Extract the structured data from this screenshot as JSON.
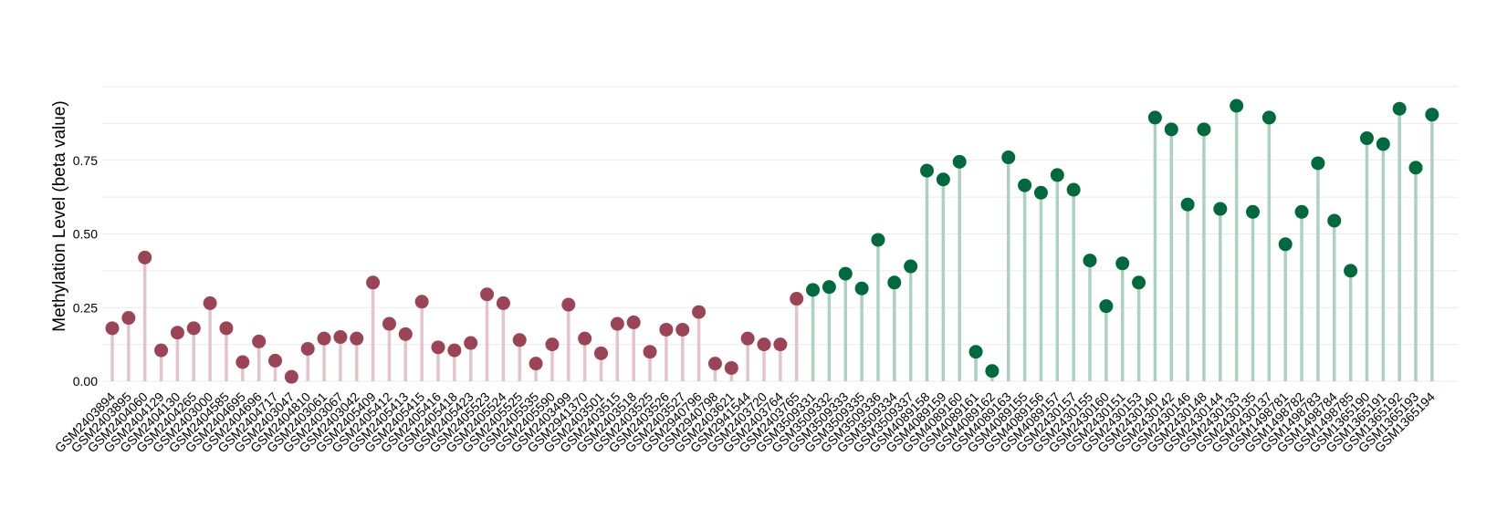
{
  "chart_data": {
    "type": "lollipop",
    "title": "",
    "xlabel": "",
    "ylabel": "Methylation Level (beta value)",
    "ylim": [
      0,
      1.0
    ],
    "yticks": [
      0.0,
      0.25,
      0.5,
      0.75
    ],
    "ytick_labels": [
      "0.00",
      "0.25",
      "0.50",
      "0.75"
    ],
    "grid": true,
    "legend": "none",
    "series": [
      {
        "color": "#9b4455",
        "stem_color": "#e3c4cc",
        "x": [
          "GSM2403894",
          "GSM2403895",
          "GSM2404060",
          "GSM2404129",
          "GSM2404130",
          "GSM2404265",
          "GSM2403000",
          "GSM2404585",
          "GSM2404695",
          "GSM2404696",
          "GSM2404717",
          "GSM2403047",
          "GSM2404810",
          "GSM2403061",
          "GSM2403067",
          "GSM2403042",
          "GSM2405409",
          "GSM2405412",
          "GSM2405413",
          "GSM2405415",
          "GSM2405416",
          "GSM2405418",
          "GSM2405423",
          "GSM2405523",
          "GSM2405524",
          "GSM2405525",
          "GSM2405535",
          "GSM2405590",
          "GSM2403499",
          "GSM2941370",
          "GSM2403501",
          "GSM2403515",
          "GSM2403518",
          "GSM2403525",
          "GSM2403526",
          "GSM2403527",
          "GSM2940796",
          "GSM2940798",
          "GSM2403621",
          "GSM2941544",
          "GSM2403720",
          "GSM2403764",
          "GSM2403765"
        ],
        "values": [
          0.18,
          0.215,
          0.42,
          0.105,
          0.165,
          0.18,
          0.265,
          0.18,
          0.065,
          0.135,
          0.07,
          0.015,
          0.11,
          0.145,
          0.15,
          0.145,
          0.335,
          0.195,
          0.16,
          0.27,
          0.115,
          0.105,
          0.13,
          0.295,
          0.265,
          0.14,
          0.06,
          0.125,
          0.26,
          0.145,
          0.095,
          0.195,
          0.2,
          0.1,
          0.175,
          0.175,
          0.235,
          0.06,
          0.045,
          0.145,
          0.125,
          0.125,
          0.28
        ]
      },
      {
        "color": "#006a3e",
        "stem_color": "#acd1c2",
        "x": [
          "GSM3509331",
          "GSM3509332",
          "GSM3509333",
          "GSM3509335",
          "GSM3509336",
          "GSM3509334",
          "GSM3509337",
          "GSM4089158",
          "GSM4089159",
          "GSM4089160",
          "GSM4089161",
          "GSM4089162",
          "GSM4089163",
          "GSM4089155",
          "GSM4089156",
          "GSM4089157",
          "GSM2430157",
          "GSM2430155",
          "GSM2430160",
          "GSM2430151",
          "GSM2430153",
          "GSM2430140",
          "GSM2430142",
          "GSM2430146",
          "GSM2430148",
          "GSM2430144",
          "GSM2430133",
          "GSM2430135",
          "GSM2430137",
          "GSM1498781",
          "GSM1498782",
          "GSM1498783",
          "GSM1498784",
          "GSM1498785",
          "GSM1365190",
          "GSM1365191",
          "GSM1365192",
          "GSM1365193",
          "GSM1365194"
        ],
        "values": [
          0.31,
          0.32,
          0.365,
          0.315,
          0.48,
          0.335,
          0.39,
          0.715,
          0.685,
          0.745,
          0.1,
          0.035,
          0.76,
          0.665,
          0.64,
          0.7,
          0.65,
          0.41,
          0.255,
          0.4,
          0.335,
          0.895,
          0.855,
          0.6,
          0.855,
          0.585,
          0.935,
          0.575,
          0.895,
          0.465,
          0.575,
          0.74,
          0.545,
          0.375,
          0.825,
          0.805,
          0.925,
          0.725,
          0.905
        ]
      }
    ]
  }
}
